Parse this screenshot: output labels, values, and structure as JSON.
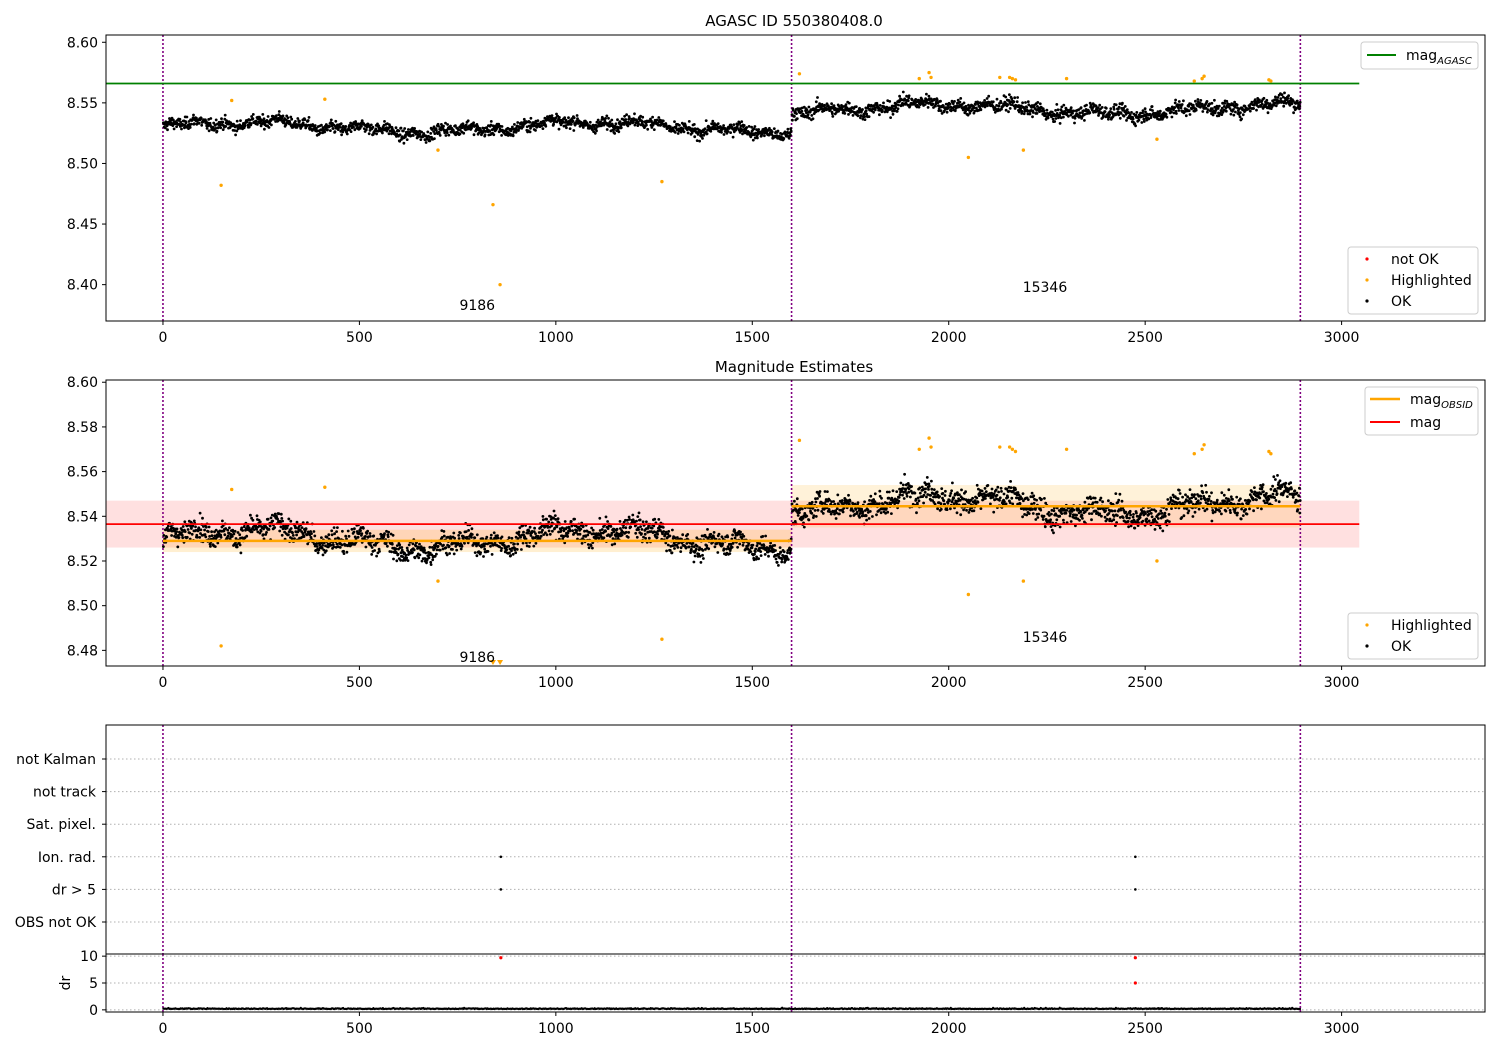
{
  "chart_data": [
    {
      "type": "scatter",
      "title": "AGASC ID 550380408.0",
      "xlabel": "",
      "ylabel": "",
      "xlim": [
        -145,
        3365
      ],
      "ylim": [
        8.37,
        8.606
      ],
      "xticks": [
        0,
        500,
        1000,
        1500,
        2000,
        2500,
        3000
      ],
      "yticks": [
        8.4,
        8.45,
        8.5,
        8.55,
        8.6
      ],
      "ytick_labels": [
        "8.40",
        "8.45",
        "8.50",
        "8.55",
        "8.60"
      ],
      "vlines_x": [
        0,
        1600,
        2895
      ],
      "vline_color": "#800080",
      "lines": [
        {
          "name": "mag",
          "subscript": "AGASC",
          "color": "#008000",
          "y": 8.566,
          "x": [
            -145,
            3045
          ]
        }
      ],
      "segments": [
        {
          "obsid": "9186",
          "x_range": [
            0,
            1600
          ],
          "level": 8.53,
          "spread": 0.007,
          "label_x": 800,
          "label_y": 8.383
        },
        {
          "obsid": "15346",
          "x_range": [
            1600,
            2895
          ],
          "level": 8.545,
          "spread": 0.008,
          "label_x": 2245,
          "label_y": 8.398
        }
      ],
      "series": [
        {
          "name": "not OK",
          "color": "#ff0000",
          "points": []
        },
        {
          "name": "Highlighted",
          "color": "#ffa500",
          "points": [
            [
              148,
              8.482
            ],
            [
              175,
              8.552
            ],
            [
              412,
              8.553
            ],
            [
              700,
              8.511
            ],
            [
              840,
              8.466
            ],
            [
              858,
              8.4
            ],
            [
              1270,
              8.485
            ],
            [
              1620,
              8.574
            ],
            [
              1925,
              8.57
            ],
            [
              1950,
              8.575
            ],
            [
              1955,
              8.571
            ],
            [
              2050,
              8.505
            ],
            [
              2130,
              8.571
            ],
            [
              2155,
              8.571
            ],
            [
              2162,
              8.57
            ],
            [
              2170,
              8.569
            ],
            [
              2190,
              8.511
            ],
            [
              2300,
              8.57
            ],
            [
              2530,
              8.52
            ],
            [
              2625,
              8.568
            ],
            [
              2645,
              8.57
            ],
            [
              2650,
              8.572
            ],
            [
              2815,
              8.569
            ],
            [
              2820,
              8.568
            ]
          ]
        },
        {
          "name": "OK",
          "color": "#000000",
          "points": []
        }
      ],
      "legends": [
        {
          "placement": "upper right",
          "entries": [
            "mag_AGASC"
          ]
        },
        {
          "placement": "lower right",
          "entries": [
            "not OK",
            "Highlighted",
            "OK"
          ]
        }
      ]
    },
    {
      "type": "scatter",
      "title": "Magnitude Estimates",
      "xlabel": "",
      "ylabel": "",
      "xlim": [
        -145,
        3365
      ],
      "ylim": [
        8.473,
        8.601
      ],
      "xticks": [
        0,
        500,
        1000,
        1500,
        2000,
        2500,
        3000
      ],
      "yticks": [
        8.48,
        8.5,
        8.52,
        8.54,
        8.56,
        8.58,
        8.6
      ],
      "ytick_labels": [
        "8.48",
        "8.50",
        "8.52",
        "8.54",
        "8.56",
        "8.58",
        "8.60"
      ],
      "vlines_x": [
        0,
        1600,
        2895
      ],
      "vline_color": "#800080",
      "bands": [
        {
          "color": "#ff0000",
          "opacity": 0.12,
          "x": [
            -145,
            3045
          ],
          "y": [
            8.526,
            8.547
          ]
        },
        {
          "color": "#ffa500",
          "opacity": 0.18,
          "x": [
            0,
            1600
          ],
          "y": [
            8.524,
            8.534
          ]
        },
        {
          "color": "#ffa500",
          "opacity": 0.15,
          "x": [
            1600,
            2895
          ],
          "y": [
            8.535,
            8.554
          ]
        }
      ],
      "lines": [
        {
          "name": "mag",
          "color": "#ff0000",
          "y": 8.5365,
          "x": [
            -145,
            3045
          ]
        },
        {
          "name": "mag",
          "subscript": "OBSID",
          "color": "#ffa500",
          "y": 8.529,
          "x": [
            0,
            1600
          ]
        },
        {
          "name": "mag",
          "subscript": "OBSID",
          "color": "#ffa500",
          "y": 8.5445,
          "x": [
            1600,
            2895
          ]
        }
      ],
      "segments": [
        {
          "obsid": "9186",
          "x_range": [
            0,
            1600
          ],
          "level": 8.53,
          "spread": 0.007,
          "label_x": 800,
          "label_y": 8.477
        },
        {
          "obsid": "15346",
          "x_range": [
            1600,
            2895
          ],
          "level": 8.545,
          "spread": 0.008,
          "label_x": 2245,
          "label_y": 8.486
        }
      ],
      "series": [
        {
          "name": "Highlighted",
          "color": "#ffa500",
          "points": [
            [
              148,
              8.482
            ],
            [
              175,
              8.552
            ],
            [
              412,
              8.553
            ],
            [
              700,
              8.511
            ],
            [
              1270,
              8.485
            ],
            [
              1620,
              8.574
            ],
            [
              1925,
              8.57
            ],
            [
              1950,
              8.575
            ],
            [
              1955,
              8.571
            ],
            [
              2050,
              8.505
            ],
            [
              2130,
              8.571
            ],
            [
              2155,
              8.571
            ],
            [
              2162,
              8.57
            ],
            [
              2170,
              8.569
            ],
            [
              2190,
              8.511
            ],
            [
              2300,
              8.57
            ],
            [
              2530,
              8.52
            ],
            [
              2625,
              8.568
            ],
            [
              2645,
              8.57
            ],
            [
              2650,
              8.572
            ],
            [
              2815,
              8.569
            ],
            [
              2820,
              8.568
            ]
          ]
        },
        {
          "name": "OK",
          "color": "#000000",
          "points": []
        }
      ],
      "offscale_markers": [
        {
          "x": 840,
          "color": "#ffa500"
        },
        {
          "x": 858,
          "color": "#ffa500"
        }
      ],
      "legends": [
        {
          "placement": "upper right",
          "entries": [
            "mag_OBSID",
            "mag"
          ]
        },
        {
          "placement": "lower right",
          "entries": [
            "Highlighted",
            "OK"
          ]
        }
      ]
    },
    {
      "type": "scatter",
      "title": "",
      "xlabel": "",
      "ylabel": "",
      "xlim": [
        -145,
        3365
      ],
      "categories": [
        "OBS not OK",
        "dr > 5",
        "Ion. rad.",
        "Sat. pixel.",
        "not track",
        "not Kalman"
      ],
      "grid": "horizontal dotted",
      "vlines_x": [
        0,
        1600,
        2895
      ],
      "vline_color": "#800080",
      "flag_points": [
        {
          "category": "Ion. rad.",
          "x": 860
        },
        {
          "category": "Ion. rad.",
          "x": 2475
        },
        {
          "category": "dr > 5",
          "x": 860
        },
        {
          "category": "dr > 5",
          "x": 2475
        }
      ]
    },
    {
      "type": "scatter",
      "title": "",
      "xlabel": "",
      "ylabel": "dr",
      "xlim": [
        -145,
        3365
      ],
      "ylim": [
        -0.4,
        10.4
      ],
      "xticks": [
        0,
        500,
        1000,
        1500,
        2000,
        2500,
        3000
      ],
      "yticks": [
        0,
        5,
        10
      ],
      "ytick_labels": [
        "0",
        "5",
        "10"
      ],
      "vlines_x": [
        0,
        1600,
        2895
      ],
      "vline_color": "#800080",
      "grid": "horizontal dotted",
      "series": [
        {
          "name": "OK",
          "color": "#000000",
          "level": 0.15,
          "spread": 0.12
        },
        {
          "name": "not OK",
          "color": "#ff0000",
          "points": [
            [
              860,
              9.7
            ],
            [
              2475,
              9.7
            ],
            [
              2475,
              5.0
            ]
          ]
        }
      ]
    }
  ]
}
